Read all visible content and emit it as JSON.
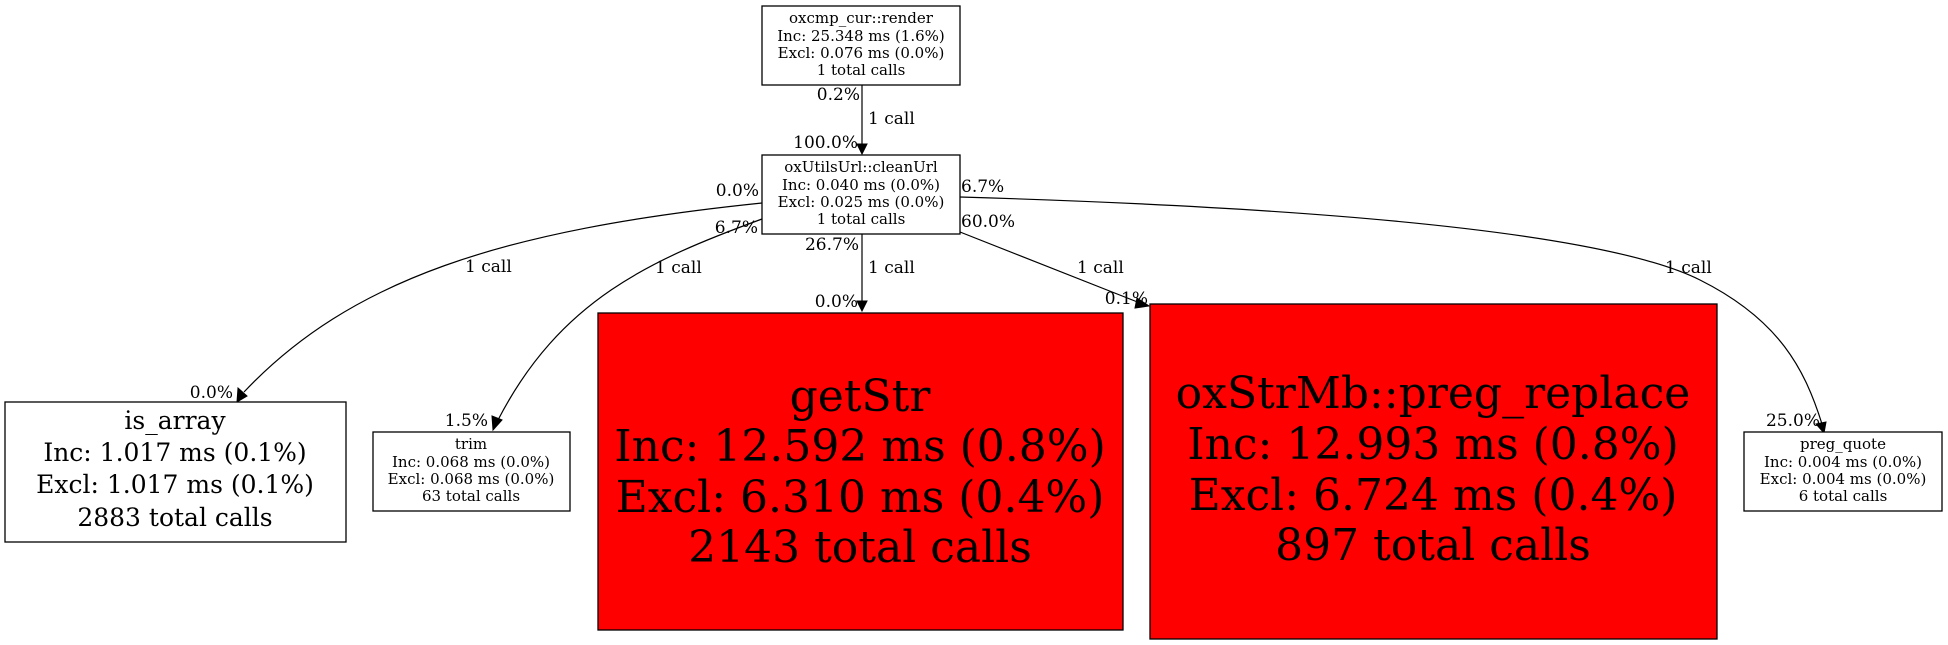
{
  "colors": {
    "hot": "#ff0000",
    "normal": "#ffffff",
    "line": "#000000"
  },
  "nodes": {
    "render": {
      "name": "oxcmp_cur::render",
      "inc": "Inc: 25.348 ms (1.6%)",
      "excl": "Excl: 0.076 ms (0.0%)",
      "calls": "1 total calls"
    },
    "cleanurl": {
      "name": "oxUtilsUrl::cleanUrl",
      "inc": "Inc: 0.040 ms (0.0%)",
      "excl": "Excl: 0.025 ms (0.0%)",
      "calls": "1 total calls"
    },
    "is_array": {
      "name": "is_array",
      "inc": "Inc: 1.017 ms (0.1%)",
      "excl": "Excl: 1.017 ms (0.1%)",
      "calls": "2883 total calls"
    },
    "trim": {
      "name": "trim",
      "inc": "Inc: 0.068 ms (0.0%)",
      "excl": "Excl: 0.068 ms (0.0%)",
      "calls": "63 total calls"
    },
    "getstr": {
      "name": "getStr",
      "inc": "Inc: 12.592 ms (0.8%)",
      "excl": "Excl: 6.310 ms (0.4%)",
      "calls": "2143 total calls"
    },
    "preg_replace": {
      "name": "oxStrMb::preg_replace",
      "inc": "Inc: 12.993 ms (0.8%)",
      "excl": "Excl: 6.724 ms (0.4%)",
      "calls": "897 total calls"
    },
    "preg_quote": {
      "name": "preg_quote",
      "inc": "Inc: 0.004 ms (0.0%)",
      "excl": "Excl: 0.004 ms (0.0%)",
      "calls": "6 total calls"
    }
  },
  "edges": {
    "render_cleanurl": {
      "label": "1 call",
      "tail": "0.2%",
      "head": "100.0%"
    },
    "cleanurl_is_array": {
      "label": "1 call",
      "tail": "0.0%",
      "head": "0.0%"
    },
    "cleanurl_trim": {
      "label": "1 call",
      "tail": "6.7%",
      "head": "1.5%"
    },
    "cleanurl_getstr": {
      "label": "1 call",
      "tail": "26.7%",
      "head": "0.0%"
    },
    "cleanurl_preg_replace": {
      "label": "1 call",
      "tail": "60.0%",
      "head": "0.1%"
    },
    "cleanurl_preg_quote": {
      "label": "1 call",
      "tail": "6.7%",
      "head": "25.0%"
    }
  }
}
